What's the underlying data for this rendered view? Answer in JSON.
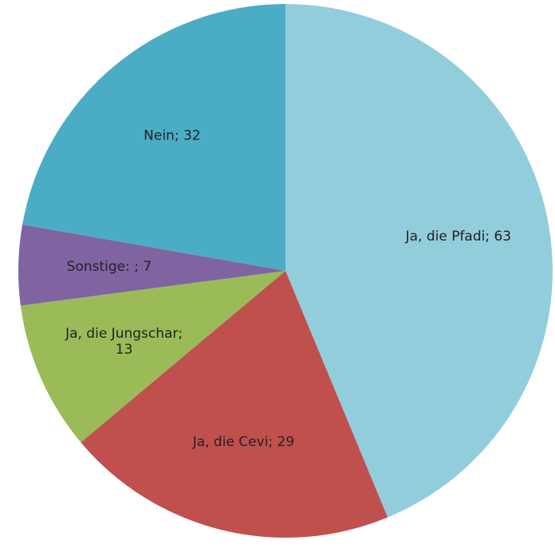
{
  "chart_data": {
    "type": "pie",
    "values": [
      63,
      29,
      13,
      7,
      32
    ],
    "value_labels": [
      "Ja, die Pfadi; 63",
      "Ja, die Cevi; 29",
      "Ja, die Jungschar; 13",
      "Sonstige: ; 7",
      "Nein; 32"
    ],
    "colors": [
      "#92cddc",
      "#c0504d",
      "#9bbb59",
      "#8064a2",
      "#4bacc6"
    ]
  }
}
